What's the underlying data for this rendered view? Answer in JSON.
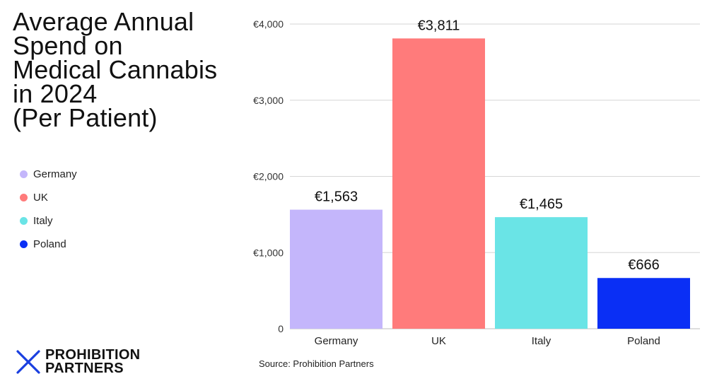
{
  "title_lines": [
    "Average Annual",
    "Spend on",
    "Medical Cannabis",
    "in 2024",
    "(Per Patient)"
  ],
  "source": "Source: Prohibition Partners",
  "brand": {
    "line1": "PROHIBITION",
    "line2": "PARTNERS",
    "icon": "x-logo-icon",
    "color": "#1a3fe0"
  },
  "chart_data": {
    "type": "bar",
    "title": "Average Annual Spend on Medical Cannabis in 2024 (Per Patient)",
    "categories": [
      "Germany",
      "UK",
      "Italy",
      "Poland"
    ],
    "values": [
      1563,
      3811,
      1465,
      666
    ],
    "data_labels": [
      "€1,563",
      "€3,811",
      "€1,465",
      "€666"
    ],
    "colors": [
      "#c4b6fb",
      "#ff7b7b",
      "#6ae4e6",
      "#0a2ff5"
    ],
    "ylim": [
      0,
      4000
    ],
    "yticks": [
      0,
      1000,
      2000,
      3000,
      4000
    ],
    "ytick_labels": [
      "0",
      "€1,000",
      "€2,000",
      "€3,000",
      "€4,000"
    ],
    "grid": true,
    "legend": {
      "placement": "left",
      "entries": [
        "Germany",
        "UK",
        "Italy",
        "Poland"
      ]
    },
    "xlabel": "",
    "ylabel": ""
  }
}
